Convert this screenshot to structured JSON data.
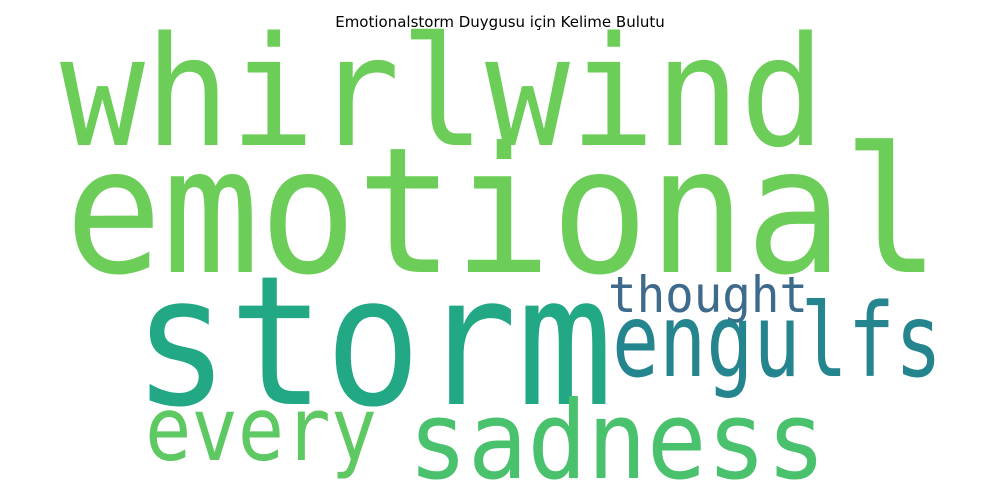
{
  "title": "Emotionalstorm Duygusu için Kelime Bulutu",
  "words": [
    {
      "text": "whirlwind",
      "color": "#6cce59"
    },
    {
      "text": "emotional",
      "color": "#6cce59"
    },
    {
      "text": "storm",
      "color": "#22a884"
    },
    {
      "text": "thought",
      "color": "#3e6a8c"
    },
    {
      "text": "engulfs",
      "color": "#25858e"
    },
    {
      "text": "every",
      "color": "#5ec962"
    },
    {
      "text": "sadness",
      "color": "#4ac16d"
    }
  ]
}
